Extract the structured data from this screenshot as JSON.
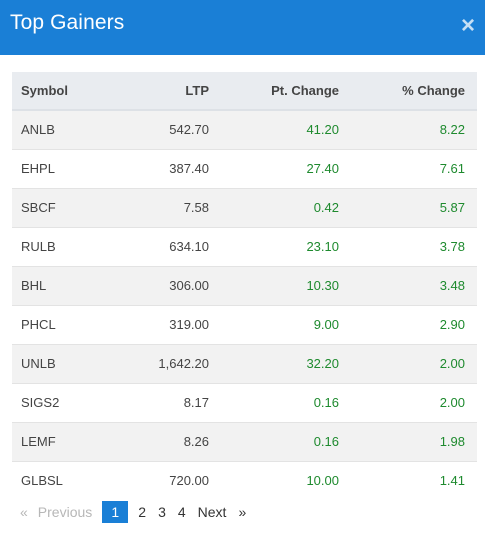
{
  "modal": {
    "title": "Top Gainers",
    "close_glyph": "×"
  },
  "table": {
    "headers": [
      "Symbol",
      "LTP",
      "Pt. Change",
      "% Change"
    ],
    "rows": [
      [
        "ANLB",
        "542.70",
        "41.20",
        "8.22"
      ],
      [
        "EHPL",
        "387.40",
        "27.40",
        "7.61"
      ],
      [
        "SBCF",
        "7.58",
        "0.42",
        "5.87"
      ],
      [
        "RULB",
        "634.10",
        "23.10",
        "3.78"
      ],
      [
        "BHL",
        "306.00",
        "10.30",
        "3.48"
      ],
      [
        "PHCL",
        "319.00",
        "9.00",
        "2.90"
      ],
      [
        "UNLB",
        "1,642.20",
        "32.20",
        "2.00"
      ],
      [
        "SIGS2",
        "8.17",
        "0.16",
        "2.00"
      ],
      [
        "LEMF",
        "8.26",
        "0.16",
        "1.98"
      ],
      [
        "GLBSL",
        "720.00",
        "10.00",
        "1.41"
      ]
    ]
  },
  "pagination": {
    "first_glyph": "«",
    "previous": "Previous",
    "pages": [
      "1",
      "2",
      "3",
      "4"
    ],
    "active_page": "1",
    "next": "Next",
    "last_glyph": "»"
  },
  "colors": {
    "header_bg": "#1a7fd6",
    "positive": "#1e8a2e"
  }
}
